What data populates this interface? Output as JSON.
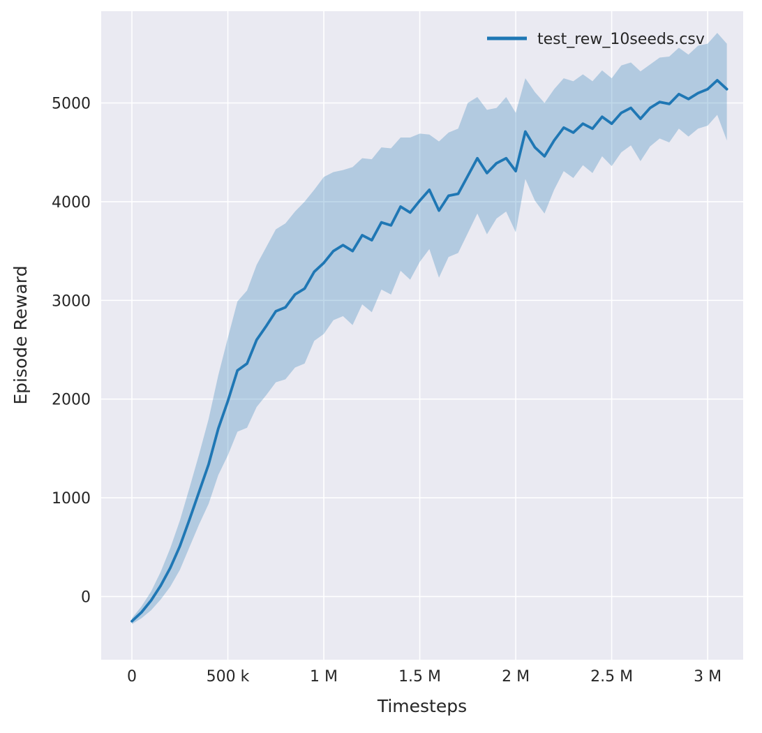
{
  "chart_data": {
    "type": "line",
    "title": "",
    "xlabel": "Timesteps",
    "ylabel": "Episode Reward",
    "xlim": [
      -160000,
      3185000
    ],
    "ylim": [
      -640,
      5930
    ],
    "grid": true,
    "legend_position": "upper right",
    "x_ticks": {
      "values": [
        0,
        500000,
        1000000,
        1500000,
        2000000,
        2500000,
        3000000
      ],
      "labels": [
        "0",
        "500 k",
        "1 M",
        "1.5 M",
        "2 M",
        "2.5 M",
        "3 M"
      ]
    },
    "y_ticks": {
      "values": [
        0,
        1000,
        2000,
        3000,
        4000,
        5000
      ],
      "labels": [
        "0",
        "1000",
        "2000",
        "3000",
        "4000",
        "5000"
      ]
    },
    "colors": {
      "line": "#1f77b4",
      "band": "#1f77b4",
      "band_opacity": 0.28,
      "plot_bg": "#eaeaf2",
      "grid": "#ffffff",
      "text": "#262626"
    },
    "series": [
      {
        "name": "test_rew_10seeds.csv",
        "x": [
          0,
          50000,
          100000,
          150000,
          200000,
          250000,
          300000,
          350000,
          400000,
          450000,
          500000,
          550000,
          600000,
          650000,
          700000,
          750000,
          800000,
          850000,
          900000,
          950000,
          1000000,
          1050000,
          1100000,
          1150000,
          1200000,
          1250000,
          1300000,
          1350000,
          1400000,
          1450000,
          1500000,
          1550000,
          1600000,
          1650000,
          1700000,
          1750000,
          1800000,
          1850000,
          1900000,
          1950000,
          2000000,
          2050000,
          2100000,
          2150000,
          2200000,
          2250000,
          2300000,
          2350000,
          2400000,
          2450000,
          2500000,
          2550000,
          2600000,
          2650000,
          2700000,
          2750000,
          2800000,
          2850000,
          2900000,
          2950000,
          3000000,
          3050000,
          3100000
        ],
        "mean": [
          -250,
          -160,
          -40,
          110,
          290,
          510,
          780,
          1060,
          1340,
          1700,
          1980,
          2290,
          2360,
          2600,
          2740,
          2890,
          2930,
          3060,
          3120,
          3290,
          3380,
          3500,
          3560,
          3500,
          3660,
          3610,
          3790,
          3760,
          3950,
          3890,
          4010,
          4120,
          3910,
          4060,
          4080,
          4260,
          4440,
          4290,
          4390,
          4440,
          4310,
          4710,
          4550,
          4460,
          4620,
          4750,
          4700,
          4790,
          4740,
          4860,
          4790,
          4900,
          4950,
          4840,
          4950,
          5010,
          4990,
          5090,
          5040,
          5100,
          5140,
          5230,
          5140
        ],
        "lower": [
          -280,
          -220,
          -140,
          -30,
          100,
          270,
          500,
          730,
          940,
          1230,
          1430,
          1670,
          1710,
          1920,
          2040,
          2170,
          2200,
          2320,
          2360,
          2590,
          2660,
          2800,
          2840,
          2750,
          2960,
          2880,
          3110,
          3060,
          3300,
          3210,
          3390,
          3520,
          3230,
          3440,
          3480,
          3680,
          3880,
          3670,
          3830,
          3900,
          3690,
          4230,
          4010,
          3880,
          4120,
          4310,
          4240,
          4370,
          4290,
          4460,
          4360,
          4500,
          4570,
          4410,
          4560,
          4640,
          4600,
          4740,
          4660,
          4740,
          4770,
          4880,
          4620
        ],
        "upper": [
          -220,
          -100,
          50,
          250,
          490,
          770,
          1100,
          1440,
          1800,
          2240,
          2620,
          2990,
          3100,
          3360,
          3540,
          3720,
          3780,
          3900,
          4000,
          4120,
          4250,
          4300,
          4320,
          4350,
          4440,
          4430,
          4550,
          4540,
          4650,
          4650,
          4690,
          4680,
          4610,
          4700,
          4740,
          5000,
          5060,
          4930,
          4950,
          5060,
          4900,
          5250,
          5110,
          5000,
          5140,
          5250,
          5220,
          5290,
          5220,
          5330,
          5250,
          5380,
          5410,
          5320,
          5390,
          5460,
          5470,
          5560,
          5490,
          5580,
          5600,
          5710,
          5600
        ]
      }
    ]
  }
}
